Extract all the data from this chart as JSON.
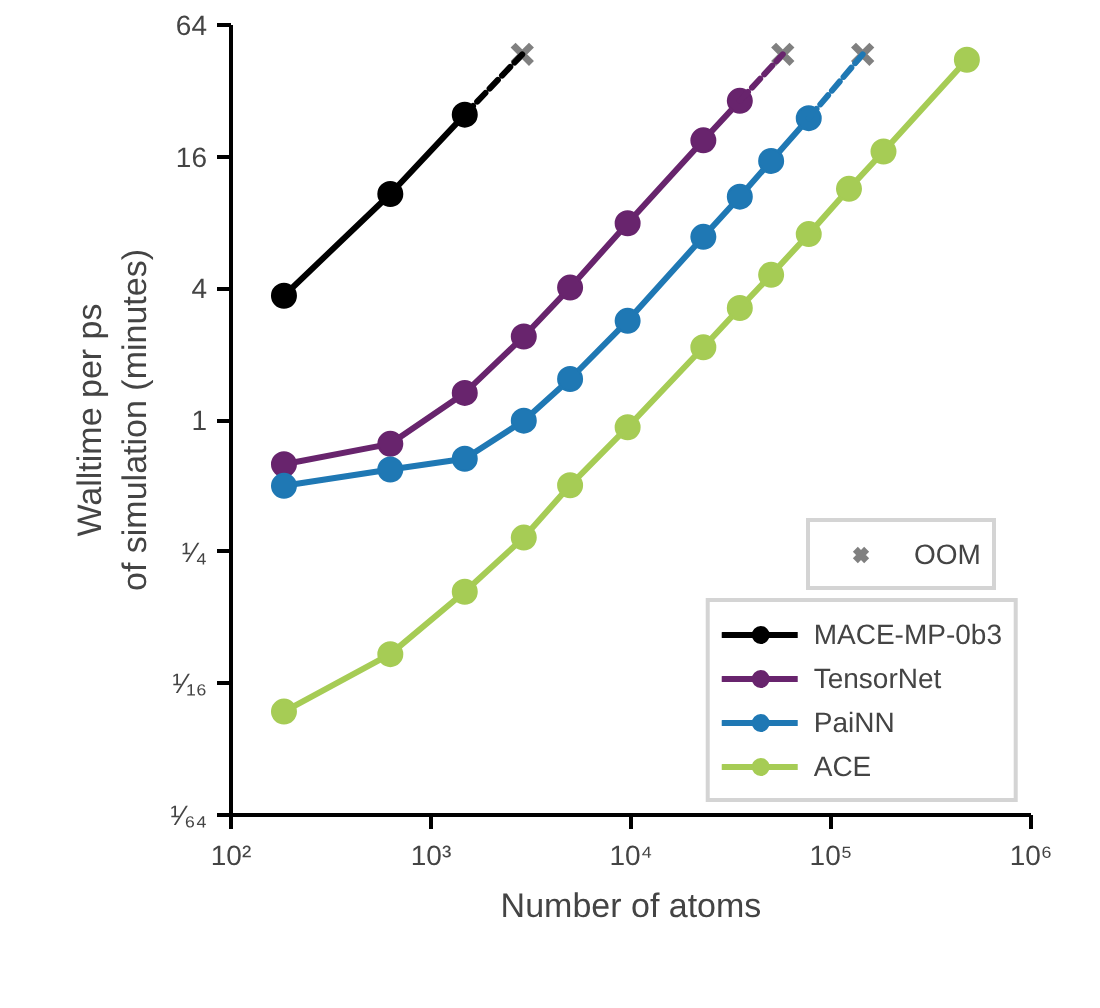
{
  "chart_data": {
    "type": "line",
    "xlabel": "Number of atoms",
    "ylabel": "Walltime per ps\nof simulation (minutes)",
    "log": "xy",
    "marker": "circle",
    "line_style": "solid",
    "legend": "bottom right",
    "xlim": [
      100,
      1000000
    ],
    "ylim": [
      0.015625,
      64
    ],
    "xticks": [
      {
        "value": 100,
        "label": "10²"
      },
      {
        "value": 1000,
        "label": "10³"
      },
      {
        "value": 10000,
        "label": "10⁴"
      },
      {
        "value": 100000,
        "label": "10⁵"
      },
      {
        "value": 1000000,
        "label": "10⁶"
      }
    ],
    "yticks": [
      {
        "value": 0.015625,
        "label": "¹⁄₆₄"
      },
      {
        "value": 0.0625,
        "label": "¹⁄₁₆"
      },
      {
        "value": 0.25,
        "label": "¹⁄₄"
      },
      1,
      4,
      16,
      64
    ],
    "series": [
      {
        "name": "MACE-MP-0b3",
        "color": "#000000",
        "type": "line",
        "x": [
          184,
          626,
          1475
        ],
        "values": [
          3.7,
          10.8,
          24.9
        ]
      },
      {
        "name": "TensorNet",
        "color": "#68246d",
        "type": "line",
        "x": [
          184,
          626,
          1475,
          2910,
          4960,
          9620,
          23000,
          35000
        ],
        "values": [
          0.628,
          0.778,
          1.33,
          2.41,
          4.03,
          7.94,
          19.0,
          28.8
        ]
      },
      {
        "name": "PaiNN",
        "color": "#1f78b4",
        "type": "line",
        "x": [
          184,
          626,
          1475,
          2910,
          4960,
          9620,
          23000,
          35000,
          50200,
          77400
        ],
        "values": [
          0.5,
          0.594,
          0.665,
          0.993,
          1.54,
          2.84,
          6.88,
          10.5,
          15.3,
          24.0
        ]
      },
      {
        "name": "ACE",
        "color": "#a6cc55",
        "type": "line",
        "x": [
          184,
          626,
          1475,
          2910,
          4960,
          9620,
          23000,
          35000,
          50200,
          77400,
          123000,
          183000,
          478000
        ],
        "values": [
          0.0464,
          0.085,
          0.164,
          0.29,
          0.503,
          0.927,
          2.15,
          3.25,
          4.61,
          7.08,
          11.4,
          16.9,
          44.4
        ]
      },
      {
        "color": "#000000",
        "type": "line",
        "line_style": "dashed",
        "marker": "none",
        "x": [
          1475,
          2860
        ],
        "values": [
          24.9,
          47
        ]
      },
      {
        "color": "#68246d",
        "type": "line",
        "line_style": "dashed",
        "marker": "none",
        "x": [
          35000,
          57400
        ],
        "values": [
          28.8,
          47
        ]
      },
      {
        "color": "#1f78b4",
        "type": "line",
        "line_style": "dashed",
        "marker": "none",
        "x": [
          77400,
          144000
        ],
        "values": [
          24.0,
          47
        ]
      },
      {
        "name": "OOM",
        "color": "#808080",
        "type": "scatter",
        "marker": "cross",
        "x": [
          2860,
          57400,
          144000
        ],
        "values": [
          47,
          47,
          47
        ]
      }
    ]
  }
}
